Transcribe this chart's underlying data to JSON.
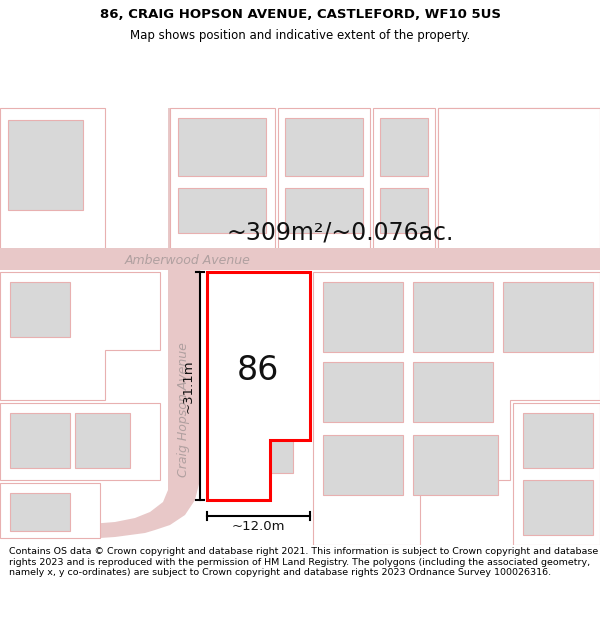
{
  "title_line1": "86, CRAIG HOPSON AVENUE, CASTLEFORD, WF10 5US",
  "title_line2": "Map shows position and indicative extent of the property.",
  "area_label": "~309m²/~0.076ac.",
  "street_label1": "Amberwood Avenue",
  "street_label2": "Craig Hopson Avenue",
  "property_number": "86",
  "dim_height": "~31.1m",
  "dim_width": "~12.0m",
  "footer_text": "Contains OS data © Crown copyright and database right 2021. This information is subject to Crown copyright and database rights 2023 and is reproduced with the permission of HM Land Registry. The polygons (including the associated geometry, namely x, y co-ordinates) are subject to Crown copyright and database rights 2023 Ordnance Survey 100026316.",
  "bg_color": "#ffffff",
  "map_bg": "#ffffff",
  "plot_color": "#ff0000",
  "building_fill": "#d8d8d8",
  "light_red": "#e8b0b0",
  "road_pink": "#e8c8c8",
  "title_fontsize": 9.5,
  "subtitle_fontsize": 8.5,
  "area_fontsize": 17,
  "street_fontsize": 9,
  "number_fontsize": 24,
  "dim_fontsize": 9.5,
  "footer_fontsize": 6.8
}
